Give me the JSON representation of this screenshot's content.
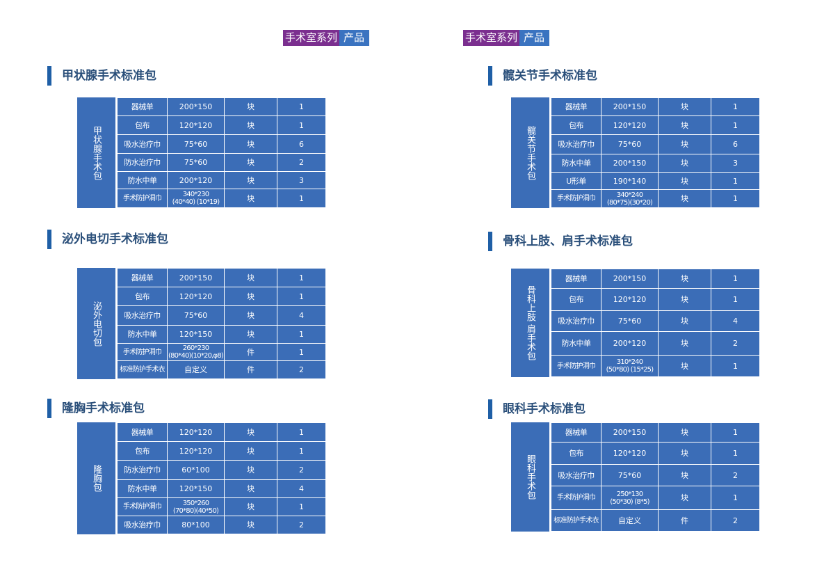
{
  "badges": [
    {
      "part1": "手术室系列",
      "part2": "产品"
    },
    {
      "part1": "手术室系列",
      "part2": "产品"
    }
  ],
  "packages": [
    {
      "title": "甲状腺手术标准包",
      "side_label": "甲状腺手术包",
      "rows": [
        [
          "器械单",
          "200*150",
          "块",
          "1"
        ],
        [
          "包布",
          "120*120",
          "块",
          "1"
        ],
        [
          "吸水治疗巾",
          "75*60",
          "块",
          "6"
        ],
        [
          "防水治疗巾",
          "75*60",
          "块",
          "2"
        ],
        [
          "防水中单",
          "200*120",
          "块",
          "3"
        ],
        [
          "手术防护洞巾",
          "340*230\n(40*40) (10*19)",
          "块",
          "1"
        ]
      ]
    },
    {
      "title": "髋关节手术标准包",
      "side_label": "髋关节手术包",
      "rows": [
        [
          "器械单",
          "200*150",
          "块",
          "1"
        ],
        [
          "包布",
          "120*120",
          "块",
          "1"
        ],
        [
          "吸水治疗巾",
          "75*60",
          "块",
          "6"
        ],
        [
          "防水中单",
          "200*150",
          "块",
          "3"
        ],
        [
          "U形单",
          "190*140",
          "块",
          "1"
        ],
        [
          "手术防护洞巾",
          "340*240\n(80*75)(30*20)",
          "块",
          "1"
        ]
      ]
    },
    {
      "title": "泌外电切手术标准包",
      "side_label": "泌外电切包",
      "rows": [
        [
          "器械单",
          "200*150",
          "块",
          "1"
        ],
        [
          "包布",
          "120*120",
          "块",
          "1"
        ],
        [
          "吸水治疗巾",
          "75*60",
          "块",
          "4"
        ],
        [
          "防水中单",
          "120*150",
          "块",
          "1"
        ],
        [
          "手术防护洞巾",
          "260*230\n(80*40)(10*20,φ8)",
          "件",
          "1"
        ],
        [
          "标准防护手术衣",
          "自定义",
          "件",
          "2"
        ]
      ]
    },
    {
      "title": "骨科上肢、肩手术标准包",
      "side_label": "骨科上肢 肩手术包",
      "rows": [
        [
          "器械单",
          "200*150",
          "块",
          "1"
        ],
        [
          "包布",
          "120*120",
          "块",
          "1"
        ],
        [
          "吸水治疗巾",
          "75*60",
          "块",
          "4"
        ],
        [
          "防水中单",
          "200*120",
          "块",
          "2"
        ],
        [
          "手术防护洞巾",
          "310*240\n(50*80) (15*25)",
          "块",
          "1"
        ]
      ]
    },
    {
      "title": "隆胸手术标准包",
      "side_label": "隆胸包",
      "rows": [
        [
          "器械单",
          "120*120",
          "块",
          "1"
        ],
        [
          "包布",
          "120*120",
          "块",
          "1"
        ],
        [
          "防水治疗巾",
          "60*100",
          "块",
          "2"
        ],
        [
          "防水中单",
          "120*150",
          "块",
          "4"
        ],
        [
          "手术防护洞巾",
          "350*260\n(70*80)(40*50)",
          "块",
          "1"
        ],
        [
          "吸水治疗巾",
          "80*100",
          "块",
          "2"
        ]
      ]
    },
    {
      "title": "眼科手术标准包",
      "side_label": "眼科手术包",
      "rows": [
        [
          "器械单",
          "200*150",
          "块",
          "1"
        ],
        [
          "包布",
          "120*120",
          "块",
          "1"
        ],
        [
          "吸水治疗巾",
          "75*60",
          "块",
          "2"
        ],
        [
          "手术防护洞巾",
          "250*130\n(50*30) (8*5)",
          "块",
          "1"
        ],
        [
          "标准防护手术衣",
          "自定义",
          "件",
          "2"
        ]
      ]
    }
  ]
}
